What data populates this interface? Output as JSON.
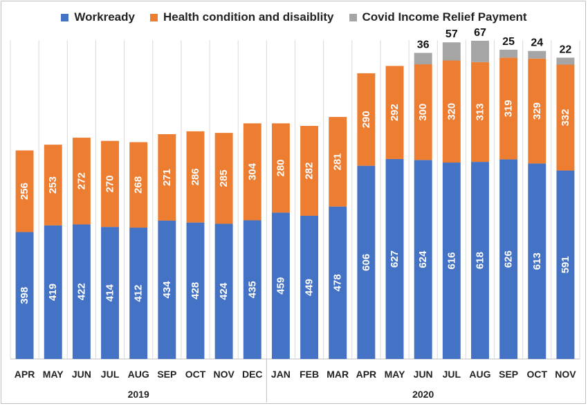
{
  "chart_data": {
    "type": "bar",
    "stacked": true,
    "title": "",
    "xlabel": "",
    "ylabel": "",
    "grid": "vertical",
    "legend_position": "top",
    "categories": [
      "APR",
      "MAY",
      "JUN",
      "JUL",
      "AUG",
      "SEP",
      "OCT",
      "NOV",
      "DEC",
      "JAN",
      "FEB",
      "MAR",
      "APR",
      "MAY",
      "JUN",
      "JUL",
      "AUG",
      "SEP",
      "OCT",
      "NOV"
    ],
    "groups": [
      {
        "label": "2019",
        "count": 9
      },
      {
        "label": "2020",
        "count": 11
      }
    ],
    "series": [
      {
        "name": "Workready",
        "color": "#4472C4",
        "values": [
          398,
          419,
          422,
          414,
          412,
          434,
          428,
          424,
          435,
          459,
          449,
          478,
          606,
          627,
          624,
          616,
          618,
          626,
          613,
          591
        ]
      },
      {
        "name": "Health condition and disaiblity",
        "color": "#ED7D31",
        "values": [
          256,
          253,
          272,
          270,
          268,
          271,
          286,
          285,
          304,
          280,
          282,
          281,
          290,
          292,
          300,
          320,
          313,
          319,
          329,
          332
        ]
      },
      {
        "name": "Covid Income Relief Payment",
        "color": "#A5A5A5",
        "values": [
          null,
          null,
          null,
          null,
          null,
          null,
          null,
          null,
          null,
          null,
          null,
          null,
          null,
          null,
          36,
          57,
          67,
          25,
          24,
          22
        ]
      }
    ],
    "ylim": [
      0,
      1000
    ]
  }
}
